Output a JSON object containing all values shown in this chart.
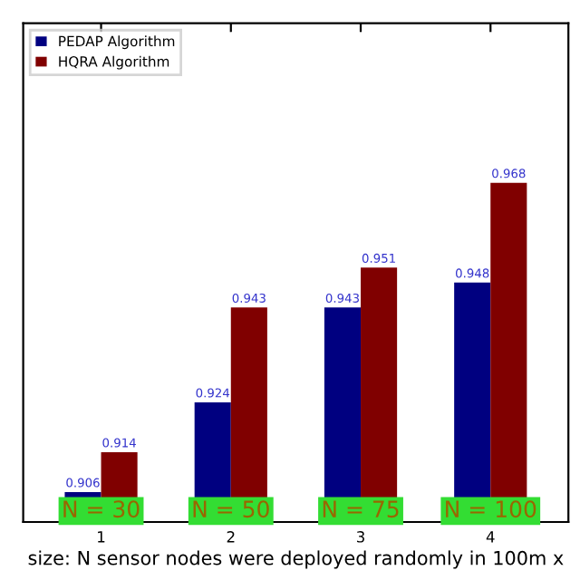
{
  "chart_data": {
    "type": "bar",
    "xlabel": "size: N sensor nodes were deployed randomly in 100m x",
    "categories": [
      "1",
      "2",
      "3",
      "4"
    ],
    "series": [
      {
        "name": "PEDAP Algorithm",
        "color": "#000080",
        "values": [
          0.906,
          0.924,
          0.943,
          0.948
        ]
      },
      {
        "name": "HQRA Algorithm",
        "color": "#800000",
        "values": [
          0.914,
          0.943,
          0.951,
          0.968
        ]
      }
    ],
    "ylim": [
      0.9,
      1.0
    ],
    "tick_labels": "x",
    "data_labels": true,
    "legend": "top left",
    "grid": false,
    "annotations": [
      {
        "text": "N = 30",
        "x": "1",
        "y": 0.9
      },
      {
        "text": "N = 50",
        "x": "2",
        "y": 0.9
      },
      {
        "text": "N = 75",
        "x": "3",
        "y": 0.9
      },
      {
        "text": "N = 100",
        "x": "4",
        "y": 0.9
      }
    ]
  }
}
